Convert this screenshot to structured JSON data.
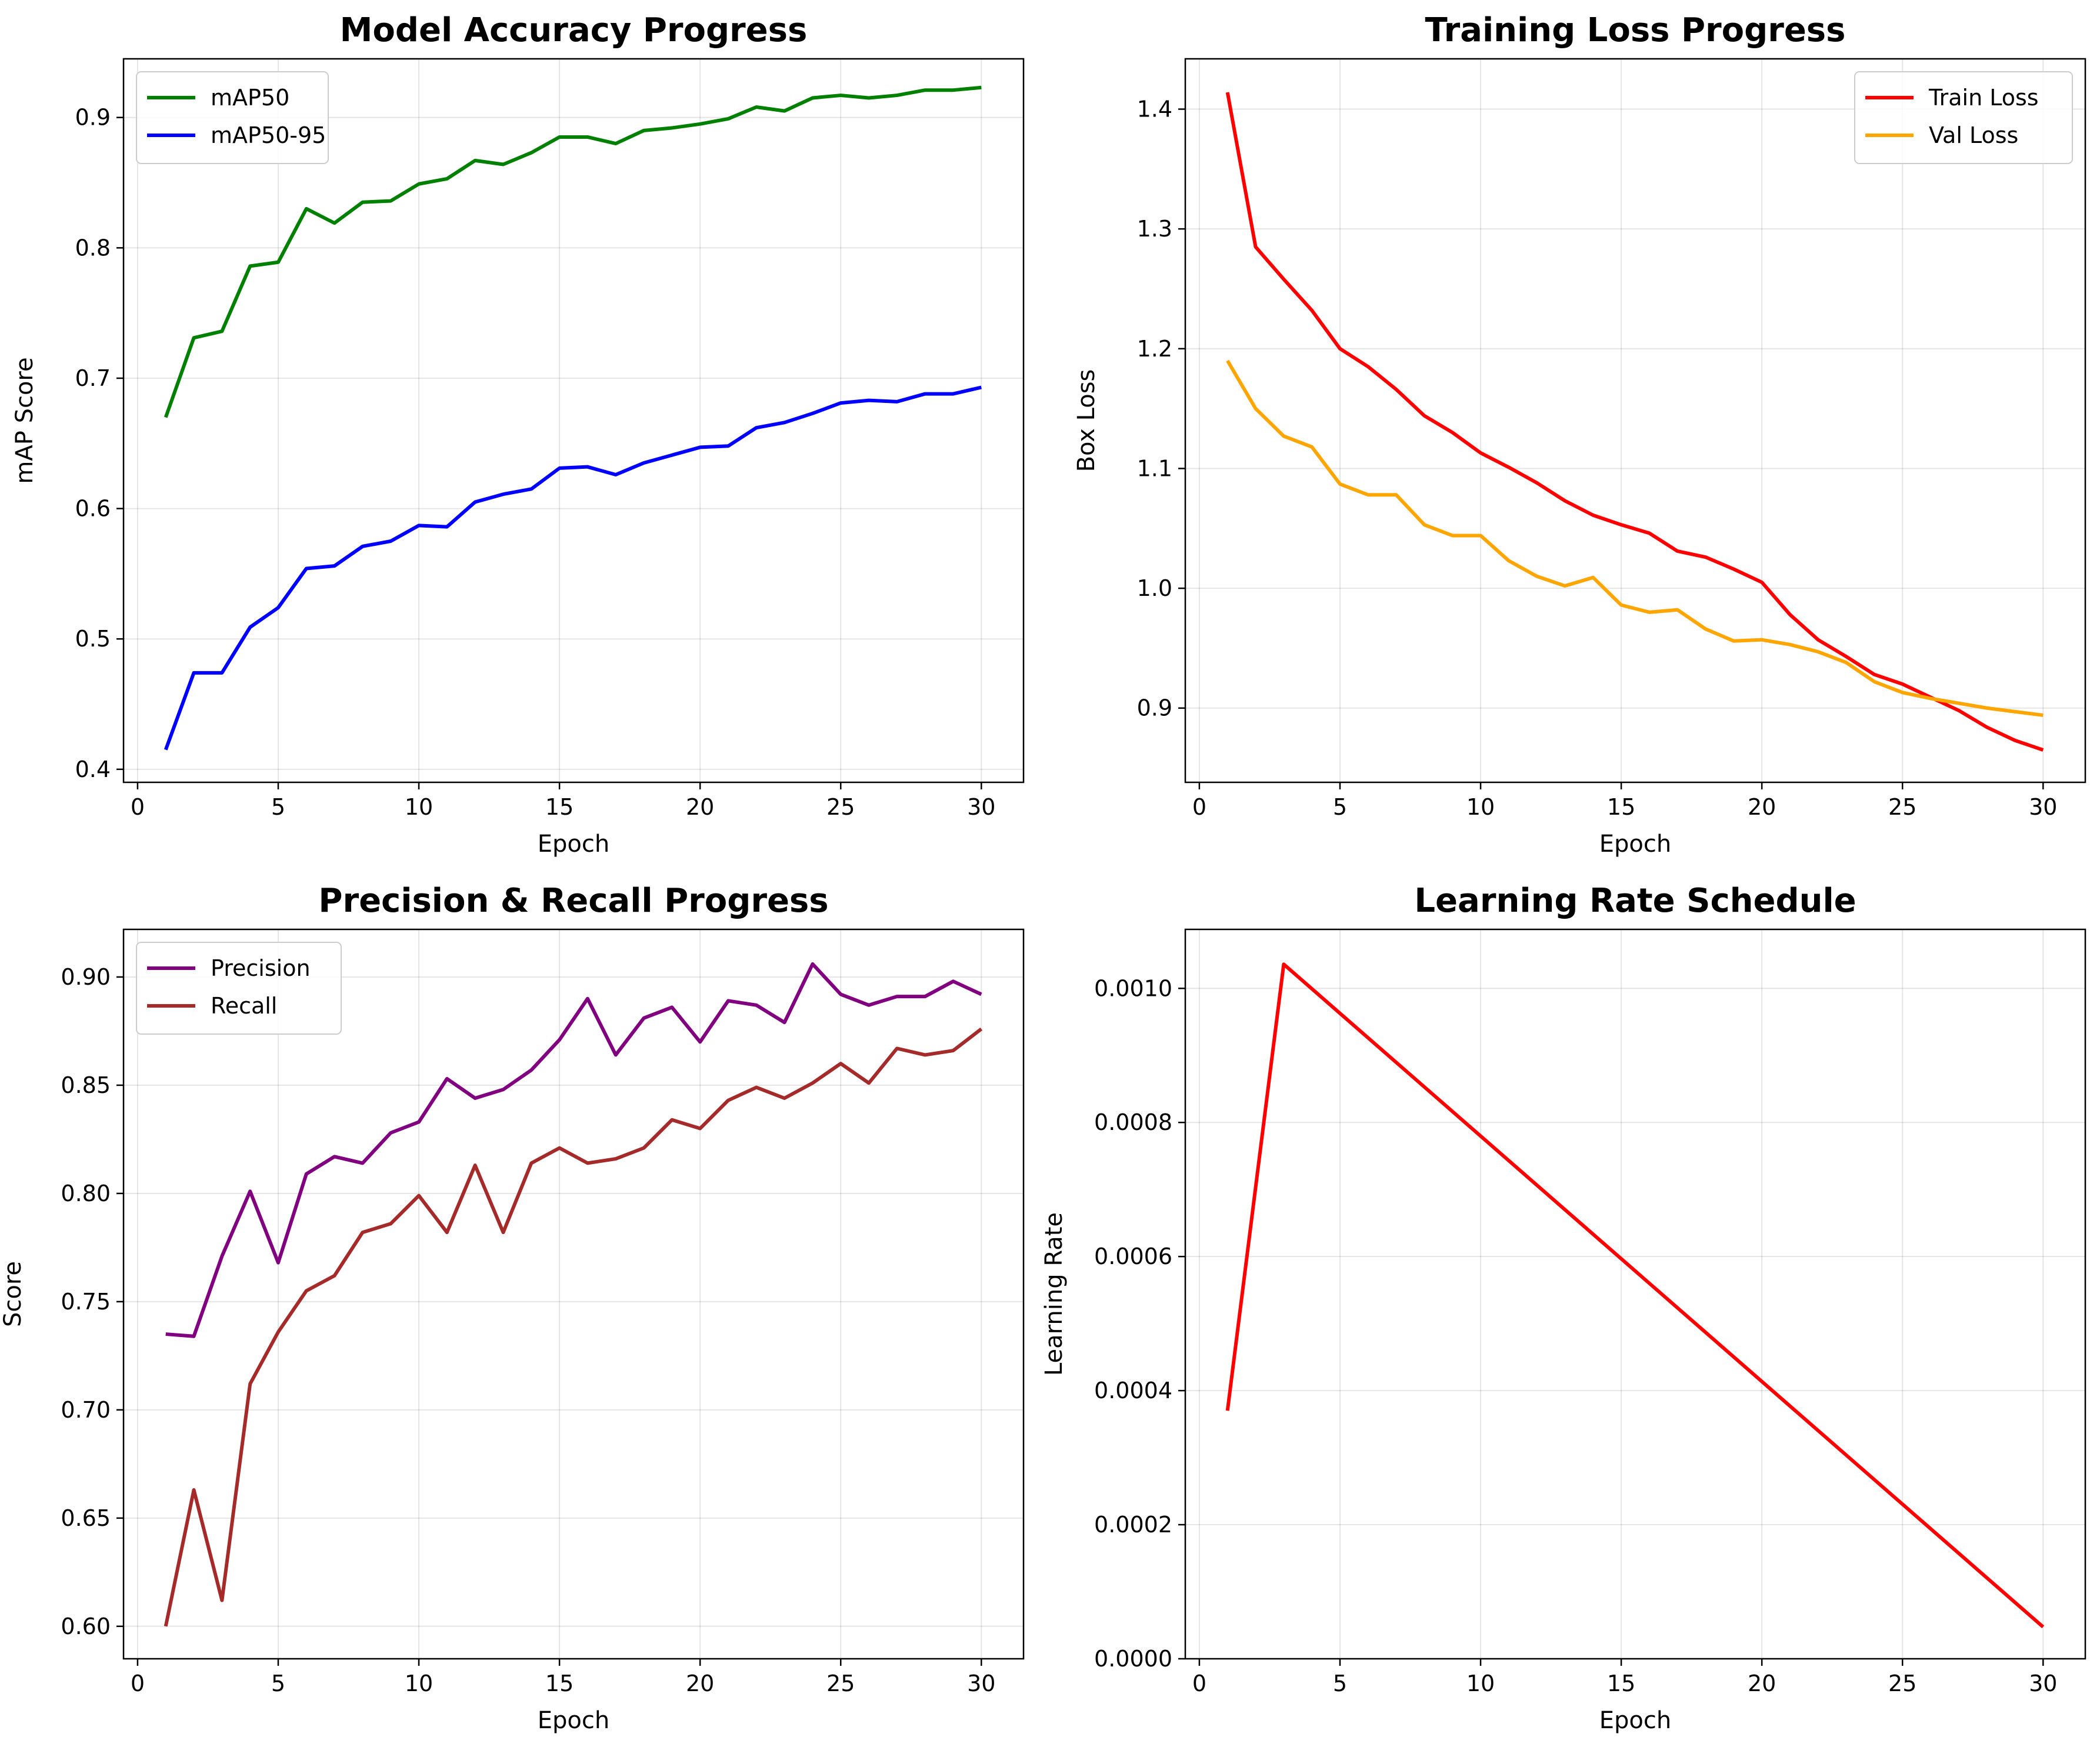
{
  "chart_data": [
    {
      "type": "line",
      "title": "Model Accuracy Progress",
      "xlabel": "Epoch",
      "ylabel": "mAP Score",
      "xlim": [
        -0.5,
        31.5
      ],
      "ylim": [
        0.39,
        0.945
      ],
      "xticks": [
        0,
        5,
        10,
        15,
        20,
        25,
        30
      ],
      "yticks": [
        0.4,
        0.5,
        0.6,
        0.7,
        0.8,
        0.9
      ],
      "ytick_decimals": 1,
      "grid": true,
      "legend_position": "upper-left",
      "x": [
        1,
        2,
        3,
        4,
        5,
        6,
        7,
        8,
        9,
        10,
        11,
        12,
        13,
        14,
        15,
        16,
        17,
        18,
        19,
        20,
        21,
        22,
        23,
        24,
        25,
        26,
        27,
        28,
        29,
        30
      ],
      "series": [
        {
          "name": "mAP50",
          "color": "#008000",
          "values": [
            0.67,
            0.731,
            0.736,
            0.786,
            0.789,
            0.83,
            0.819,
            0.835,
            0.836,
            0.849,
            0.853,
            0.867,
            0.864,
            0.873,
            0.885,
            0.885,
            0.88,
            0.89,
            0.892,
            0.895,
            0.899,
            0.908,
            0.905,
            0.915,
            0.917,
            0.915,
            0.917,
            0.921,
            0.921,
            0.923
          ]
        },
        {
          "name": "mAP50-95",
          "color": "#0000ff",
          "values": [
            0.415,
            0.474,
            0.474,
            0.509,
            0.524,
            0.554,
            0.556,
            0.571,
            0.575,
            0.587,
            0.586,
            0.605,
            0.611,
            0.615,
            0.631,
            0.632,
            0.626,
            0.635,
            0.641,
            0.647,
            0.648,
            0.662,
            0.666,
            0.673,
            0.681,
            0.683,
            0.682,
            0.688,
            0.688,
            0.693
          ]
        }
      ]
    },
    {
      "type": "line",
      "title": "Training Loss Progress",
      "xlabel": "Epoch",
      "ylabel": "Box Loss",
      "xlim": [
        -0.5,
        31.5
      ],
      "ylim": [
        0.838,
        1.442
      ],
      "xticks": [
        0,
        5,
        10,
        15,
        20,
        25,
        30
      ],
      "yticks": [
        0.9,
        1.0,
        1.1,
        1.2,
        1.3,
        1.4
      ],
      "ytick_decimals": 1,
      "grid": true,
      "legend_position": "upper-right",
      "x": [
        1,
        2,
        3,
        4,
        5,
        6,
        7,
        8,
        9,
        10,
        11,
        12,
        13,
        14,
        15,
        16,
        17,
        18,
        19,
        20,
        21,
        22,
        23,
        24,
        25,
        26,
        27,
        28,
        29,
        30
      ],
      "series": [
        {
          "name": "Train Loss",
          "color": "#ff0000",
          "values": [
            1.414,
            1.285,
            1.258,
            1.232,
            1.2,
            1.185,
            1.166,
            1.144,
            1.13,
            1.113,
            1.101,
            1.088,
            1.073,
            1.061,
            1.053,
            1.046,
            1.031,
            1.026,
            1.016,
            1.005,
            0.978,
            0.957,
            0.943,
            0.928,
            0.92,
            0.909,
            0.898,
            0.884,
            0.873,
            0.865
          ]
        },
        {
          "name": "Val Loss",
          "color": "#ffa500",
          "values": [
            1.19,
            1.15,
            1.127,
            1.118,
            1.087,
            1.078,
            1.078,
            1.053,
            1.044,
            1.044,
            1.023,
            1.01,
            1.002,
            1.009,
            0.986,
            0.98,
            0.982,
            0.966,
            0.956,
            0.957,
            0.953,
            0.947,
            0.938,
            0.922,
            0.913,
            0.908,
            0.904,
            0.9,
            0.897,
            0.894
          ]
        }
      ]
    },
    {
      "type": "line",
      "title": "Precision & Recall Progress",
      "xlabel": "Epoch",
      "ylabel": "Score",
      "xlim": [
        -0.5,
        31.5
      ],
      "ylim": [
        0.585,
        0.922
      ],
      "xticks": [
        0,
        5,
        10,
        15,
        20,
        25,
        30
      ],
      "yticks": [
        0.6,
        0.65,
        0.7,
        0.75,
        0.8,
        0.85,
        0.9
      ],
      "ytick_decimals": 2,
      "grid": true,
      "legend_position": "upper-left",
      "x": [
        1,
        2,
        3,
        4,
        5,
        6,
        7,
        8,
        9,
        10,
        11,
        12,
        13,
        14,
        15,
        16,
        17,
        18,
        19,
        20,
        21,
        22,
        23,
        24,
        25,
        26,
        27,
        28,
        29,
        30
      ],
      "series": [
        {
          "name": "Precision",
          "color": "#800080",
          "values": [
            0.735,
            0.734,
            0.771,
            0.801,
            0.768,
            0.809,
            0.817,
            0.814,
            0.828,
            0.833,
            0.853,
            0.844,
            0.848,
            0.857,
            0.871,
            0.89,
            0.864,
            0.881,
            0.886,
            0.87,
            0.889,
            0.887,
            0.879,
            0.906,
            0.892,
            0.887,
            0.891,
            0.891,
            0.898,
            0.892
          ]
        },
        {
          "name": "Recall",
          "color": "#a52a2a",
          "values": [
            0.6,
            0.663,
            0.612,
            0.712,
            0.736,
            0.755,
            0.762,
            0.782,
            0.786,
            0.799,
            0.782,
            0.813,
            0.782,
            0.814,
            0.821,
            0.814,
            0.816,
            0.821,
            0.834,
            0.83,
            0.843,
            0.849,
            0.844,
            0.851,
            0.86,
            0.851,
            0.867,
            0.864,
            0.866,
            0.876
          ]
        }
      ]
    },
    {
      "type": "line",
      "title": "Learning Rate Schedule",
      "xlabel": "Epoch",
      "ylabel": "Learning Rate",
      "xlim": [
        -0.5,
        31.5
      ],
      "ylim": [
        0.0,
        0.001088
      ],
      "xticks": [
        0,
        5,
        10,
        15,
        20,
        25,
        30
      ],
      "yticks": [
        0.0,
        0.0002,
        0.0004,
        0.0006,
        0.0008,
        0.001
      ],
      "ytick_decimals": 4,
      "grid": true,
      "legend_position": "none",
      "x": [
        1,
        3,
        30
      ],
      "series": [
        {
          "color": "#ff0000",
          "values": [
            0.00037,
            0.001036,
            4.75e-05
          ]
        }
      ]
    }
  ]
}
